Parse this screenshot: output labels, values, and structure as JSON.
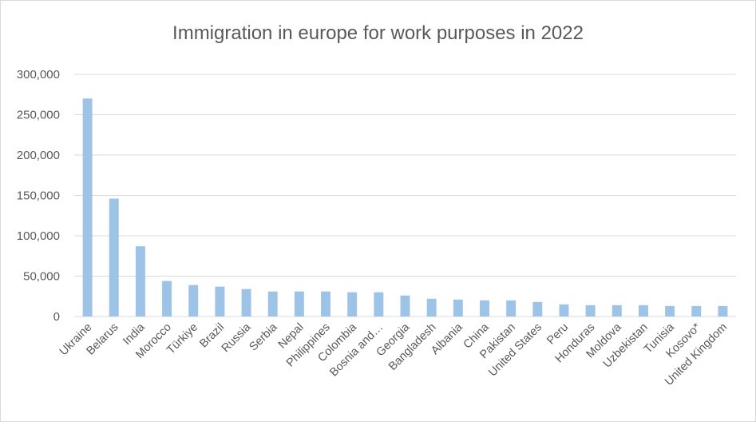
{
  "chart_data": {
    "type": "bar",
    "title": "Immigration in europe for work purposes in 2022",
    "xlabel": "",
    "ylabel": "",
    "ylim": [
      0,
      300000
    ],
    "yticks": [
      0,
      50000,
      100000,
      150000,
      200000,
      250000,
      300000
    ],
    "ytick_labels": [
      "0",
      "50,000",
      "100,000",
      "150,000",
      "200,000",
      "250,000",
      "300,000"
    ],
    "grid": true,
    "legend": "none",
    "bar_color": "#9dc3e6",
    "categories": [
      "Ukraine",
      "Belarus",
      "India",
      "Morocco",
      "Türkiye",
      "Brazil",
      "Russia",
      "Serbia",
      "Nepal",
      "Philippines",
      "Colombia",
      "Bosnia and…",
      "Georgia",
      "Bangladesh",
      "Albania",
      "China",
      "Pakistan",
      "United States",
      "Peru",
      "Honduras",
      "Moldova",
      "Uzbekistan",
      "Tunisia",
      "Kosovo*",
      "United Kingdom"
    ],
    "values": [
      270000,
      146000,
      87000,
      44000,
      39000,
      37000,
      34000,
      31000,
      31000,
      31000,
      30000,
      30000,
      26000,
      22000,
      21000,
      20000,
      20000,
      18000,
      15000,
      14000,
      14000,
      14000,
      13000,
      13000,
      13000
    ]
  }
}
